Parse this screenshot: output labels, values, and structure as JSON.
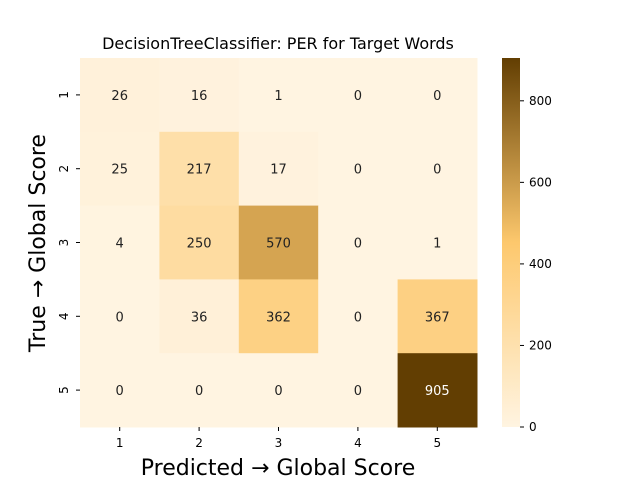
{
  "chart_data": {
    "type": "heatmap",
    "title": "DecisionTreeClassifier: PER for Target Words",
    "xlabel": "Predicted → Global Score",
    "ylabel": "True → Global Score",
    "x_categories": [
      "1",
      "2",
      "3",
      "4",
      "5"
    ],
    "y_categories": [
      "1",
      "2",
      "3",
      "4",
      "5"
    ],
    "values": [
      [
        26,
        16,
        1,
        0,
        0
      ],
      [
        25,
        217,
        17,
        0,
        0
      ],
      [
        4,
        250,
        570,
        0,
        1
      ],
      [
        0,
        36,
        362,
        0,
        367
      ],
      [
        0,
        0,
        0,
        0,
        905
      ]
    ],
    "colorbar": {
      "range": [
        0,
        905
      ],
      "ticks": [
        0,
        200,
        400,
        600,
        800
      ],
      "colors": [
        "#fff4e1",
        "#fdc86d",
        "#623e02"
      ]
    },
    "grid": false
  }
}
